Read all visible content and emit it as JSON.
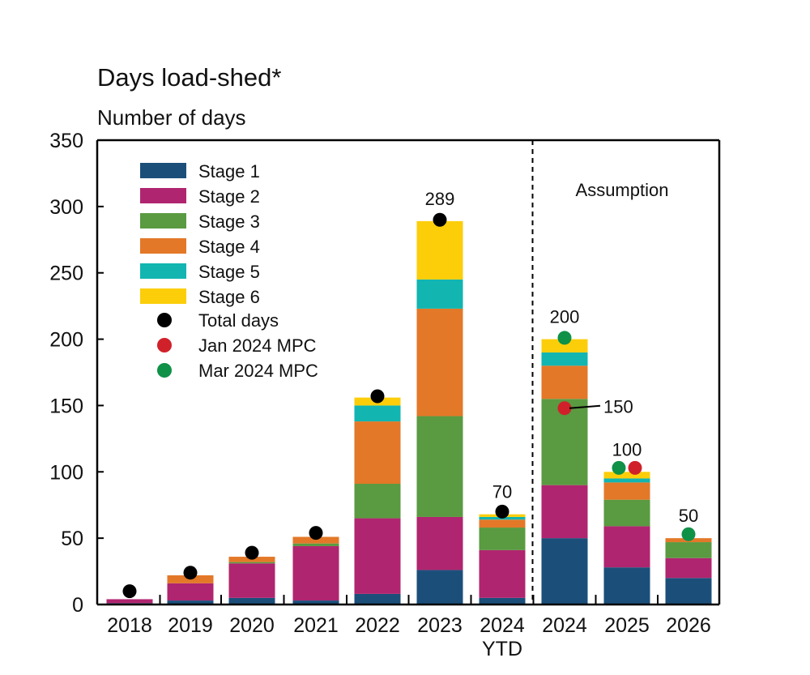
{
  "chart_data": {
    "type": "bar",
    "stacked": true,
    "title": "Days load-shed*",
    "ylabel": "Number of days",
    "ylim": [
      0,
      350
    ],
    "yticks": [
      0,
      50,
      100,
      150,
      200,
      250,
      300,
      350
    ],
    "grid": false,
    "legend_placement": "top-left",
    "categories": [
      "2018",
      "2019",
      "2020",
      "2021",
      "2022",
      "2023",
      "2024 YTD",
      "2024",
      "2025",
      "2026"
    ],
    "category_label_lines": [
      [
        "2018"
      ],
      [
        "2019"
      ],
      [
        "2020"
      ],
      [
        "2021"
      ],
      [
        "2022"
      ],
      [
        "2023"
      ],
      [
        "2024",
        "YTD"
      ],
      [
        "2024"
      ],
      [
        "2025"
      ],
      [
        "2026"
      ]
    ],
    "series": [
      {
        "name": "Stage 1",
        "color": "#1b4f7a",
        "values": [
          1,
          3,
          5,
          3,
          8,
          26,
          5,
          50,
          28,
          20
        ]
      },
      {
        "name": "Stage 2",
        "color": "#b0256f",
        "values": [
          3,
          13,
          26,
          41,
          57,
          40,
          36,
          40,
          31,
          15
        ]
      },
      {
        "name": "Stage 3",
        "color": "#5a9a41",
        "values": [
          0,
          0,
          1,
          2,
          26,
          76,
          17,
          65,
          20,
          12
        ]
      },
      {
        "name": "Stage 4",
        "color": "#e37828",
        "values": [
          0,
          6,
          4,
          5,
          47,
          81,
          6,
          25,
          13,
          3
        ]
      },
      {
        "name": "Stage 5",
        "color": "#12b5b0",
        "values": [
          0,
          0,
          0,
          0,
          12,
          22,
          2,
          10,
          3,
          0
        ]
      },
      {
        "name": "Stage 6",
        "color": "#fcce0a",
        "values": [
          0,
          0,
          0,
          0,
          6,
          44,
          2,
          10,
          5,
          0
        ]
      }
    ],
    "markers": [
      {
        "name": "Total days",
        "color": "#000000",
        "values": [
          10,
          24,
          39,
          54,
          157,
          290,
          70,
          null,
          null,
          null
        ]
      },
      {
        "name": "Jan 2024 MPC",
        "color": "#d0212a",
        "values": [
          null,
          null,
          null,
          null,
          null,
          null,
          null,
          148,
          103,
          null
        ]
      },
      {
        "name": "Mar 2024 MPC",
        "color": "#0f9148",
        "values": [
          null,
          null,
          null,
          null,
          null,
          null,
          null,
          201,
          103,
          53
        ]
      }
    ],
    "data_labels": [
      {
        "category": "2023",
        "text": "289"
      },
      {
        "category": "2024 YTD",
        "text": "70"
      },
      {
        "category": "2024",
        "text": "200"
      },
      {
        "category": "2025",
        "text": "100"
      },
      {
        "category": "2026",
        "text": "50"
      }
    ],
    "callout": {
      "category": "2024",
      "text": "150"
    },
    "annotation": "Assumption",
    "divider_after_category": "2024 YTD"
  }
}
